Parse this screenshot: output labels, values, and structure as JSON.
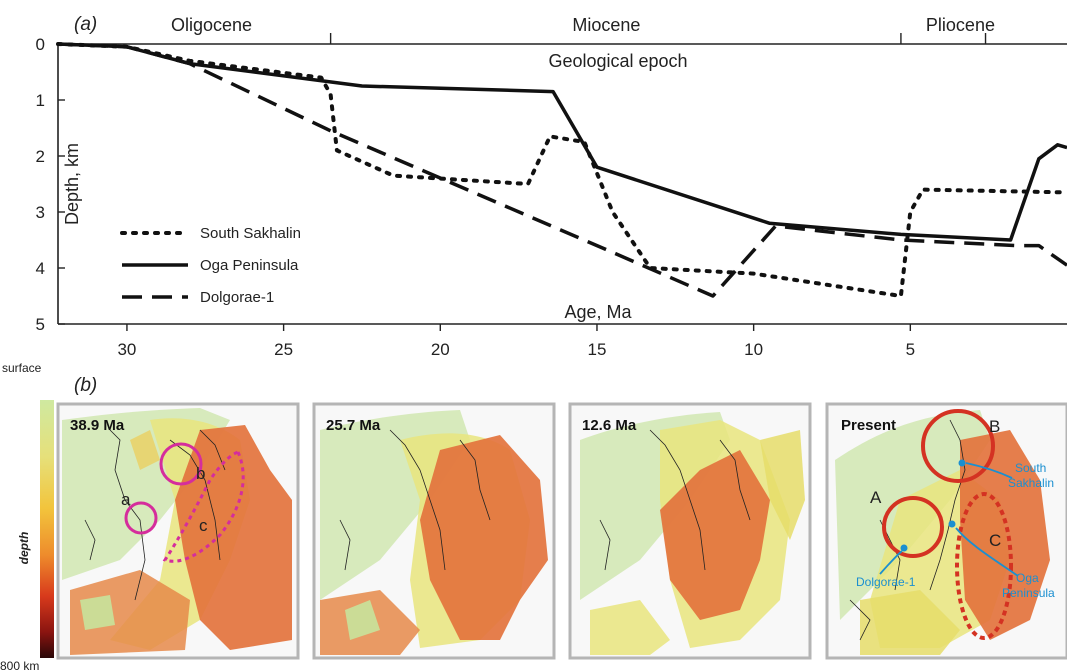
{
  "chart_data": [
    {
      "type": "line",
      "panel_label": "(a)",
      "xlabel": "Age, Ma",
      "ylabel": "Depth, km",
      "x_reversed": true,
      "xlim": [
        32.2,
        0
      ],
      "ylim": [
        0,
        5
      ],
      "y_inverted": true,
      "xticks": [
        30,
        25,
        20,
        15,
        10,
        5
      ],
      "yticks": [
        0,
        1,
        2,
        3,
        4,
        5
      ],
      "epoch_axis_title": "Geological epoch",
      "epochs": [
        {
          "name": "Oligocene",
          "label_at": 27.3
        },
        {
          "name": "Miocene",
          "label_at": 14.7
        },
        {
          "name": "Pliocene",
          "label_at": 3.4
        }
      ],
      "epoch_boundaries": [
        23.5,
        5.3,
        2.6
      ],
      "legend_position": "bottom-left",
      "series": [
        {
          "name": "South Sakhalin",
          "style": "dotted",
          "x": [
            32.2,
            30,
            28,
            23.8,
            23.5,
            23.3,
            21.5,
            17.2,
            16.5,
            15.4,
            14.5,
            13.3,
            10,
            5.3,
            5,
            4.6,
            0
          ],
          "y": [
            0,
            0.05,
            0.3,
            0.6,
            0.9,
            1.9,
            2.35,
            2.5,
            1.65,
            1.75,
            3.0,
            4.0,
            4.1,
            4.5,
            3.0,
            2.6,
            2.65
          ]
        },
        {
          "name": "Oga Peninsula",
          "style": "solid",
          "x": [
            32.2,
            30,
            28,
            22.5,
            16.4,
            15,
            9.5,
            5.3,
            1.8,
            0.9,
            0.3,
            0
          ],
          "y": [
            0,
            0.05,
            0.35,
            0.75,
            0.85,
            2.2,
            3.2,
            3.4,
            3.5,
            2.05,
            1.8,
            1.85
          ]
        },
        {
          "name": "Dolgorae-1",
          "style": "dashed",
          "x": [
            32.2,
            30,
            28,
            23.5,
            15,
            11.3,
            9.3,
            5.3,
            1.6,
            0.9,
            0
          ],
          "y": [
            0,
            0.05,
            0.35,
            1.55,
            3.6,
            4.5,
            3.25,
            3.5,
            3.6,
            3.6,
            3.95
          ]
        }
      ]
    },
    {
      "type": "heatmap",
      "panel_label": "(b)",
      "colorbar": {
        "title": "depth",
        "top_label": "surface",
        "bottom_label": "800 km"
      },
      "panels": [
        {
          "label": "38.9 Ma",
          "circles": [
            "a",
            "b"
          ],
          "region": "c"
        },
        {
          "label": "25.7 Ma"
        },
        {
          "label": "12.6 Ma"
        },
        {
          "label": "Present",
          "circles": [
            "A",
            "B"
          ],
          "region": "C",
          "sites": [
            "South Sakhalin",
            "Oga Peninsula",
            "Dolgorae-1"
          ]
        }
      ]
    }
  ],
  "colors": {
    "colorbar_stops": [
      "#cfe9a0",
      "#e6e07a",
      "#f2c43c",
      "#ee8c2c",
      "#d83a1c",
      "#8a1410",
      "#2a0808"
    ],
    "slab_orange": "#e3733d",
    "slab_yellow": "#e6dd6a",
    "slab_green": "#d3e8b5",
    "circle_magenta": "#d52d9c",
    "circle_red": "#d43222",
    "site_blue": "#1b8fd0"
  }
}
